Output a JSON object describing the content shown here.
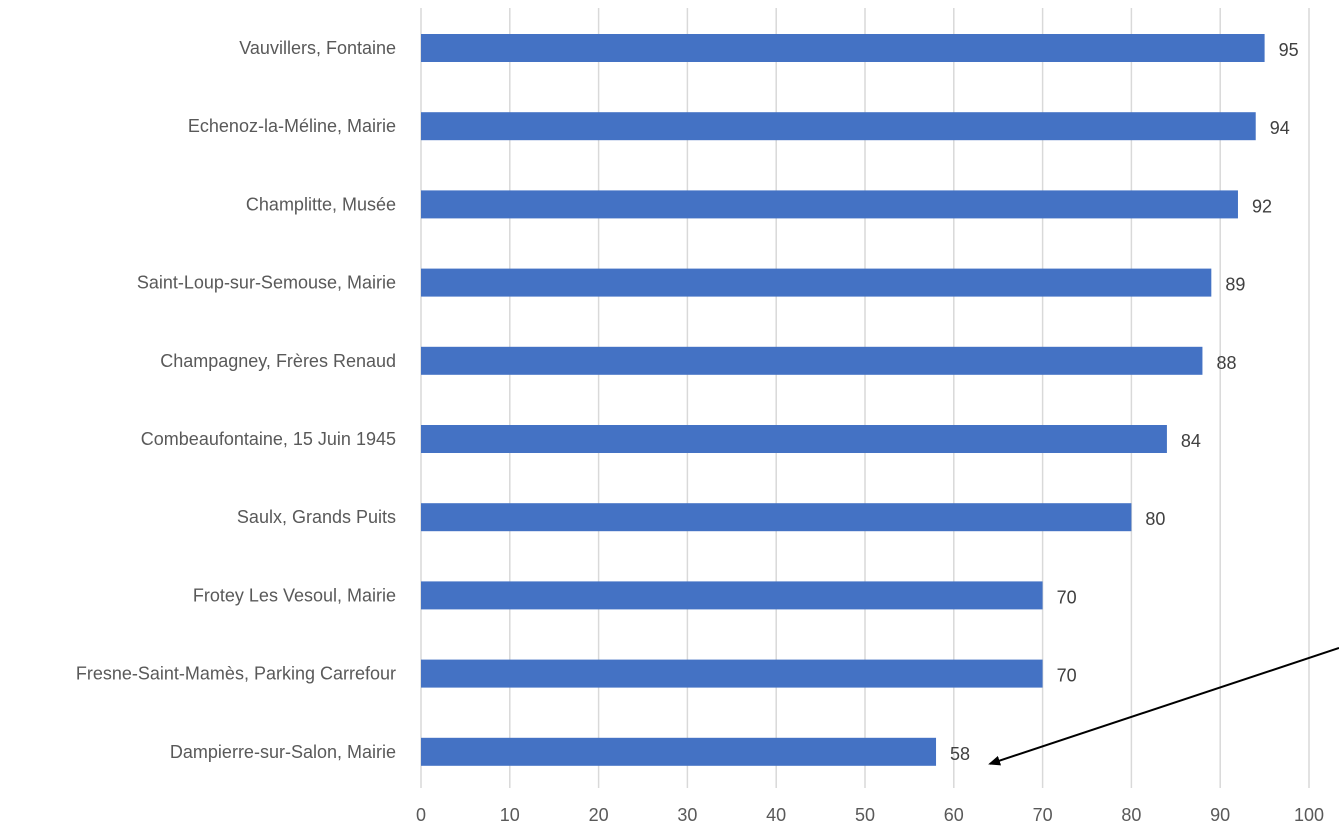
{
  "chart_data": {
    "type": "bar",
    "orientation": "horizontal",
    "categories": [
      "Vauvillers, Fontaine",
      "Echenoz-la-Méline, Mairie",
      "Champlitte, Musée",
      "Saint-Loup-sur-Semouse, Mairie",
      "Champagney, Frères Renaud",
      "Combeaufontaine, 15 Juin 1945",
      "Saulx, Grands Puits",
      "Frotey Les Vesoul, Mairie",
      "Fresne-Saint-Mamès, Parking Carrefour",
      "Dampierre-sur-Salon, Mairie"
    ],
    "values": [
      95,
      94,
      92,
      89,
      88,
      84,
      80,
      70,
      70,
      58
    ],
    "data_labels": [
      "95",
      "94",
      "92",
      "89",
      "88",
      "84",
      "80",
      "70",
      "70",
      "58"
    ],
    "x_ticks": [
      "0",
      "10",
      "20",
      "30",
      "40",
      "50",
      "60",
      "70",
      "80",
      "90",
      "100"
    ],
    "xlim": [
      0,
      100
    ],
    "title": "",
    "xlabel": "",
    "ylabel": "",
    "grid": "vertical",
    "legend": "none",
    "bar_color": "#4472c4",
    "annotation": {
      "type": "arrow",
      "points_to_category": "Dampierre-sur-Salon, Mairie"
    }
  }
}
